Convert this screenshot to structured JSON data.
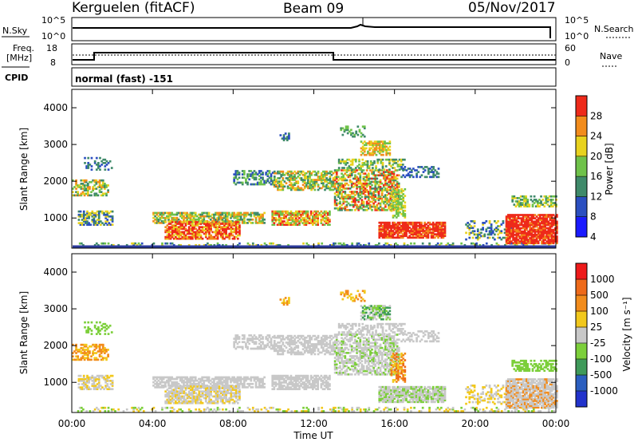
{
  "header": {
    "station": "Kerguelen (fitACF)",
    "beam": "Beam 09",
    "date": "05/Nov/2017"
  },
  "top_panels": {
    "nsky_label": "N.Sky",
    "nsky_ticks": [
      "10^5",
      "10^0"
    ],
    "nsearch_label": "N.Search",
    "nsearch_ticks": [
      "10^5",
      "10^0"
    ],
    "freq_label_1": "Freq.",
    "freq_label_2": "[MHz]",
    "freq_ticks": [
      "18",
      "8"
    ],
    "nave_label": "Nave",
    "nave_ticks": [
      "60",
      "0"
    ],
    "cpid_label": "CPID",
    "cpid_text": "normal (fast) -151"
  },
  "chart_data": [
    {
      "type": "heatmap",
      "name": "power",
      "ylabel": "Slant Range [km]",
      "yticks": [
        "4000",
        "3000",
        "2000",
        "1000"
      ],
      "ylim": [
        180,
        4500
      ],
      "colorbar_label": "Power [dB]",
      "colorbar_ticks": [
        "28",
        "24",
        "20",
        "16",
        "12",
        "8",
        "4"
      ],
      "colors": [
        "#1a1aff",
        "#2b4fc0",
        "#3f8a6a",
        "#6fc24a",
        "#e8d21e",
        "#f28c1c",
        "#ee2a1a"
      ]
    },
    {
      "type": "heatmap",
      "name": "velocity",
      "ylabel": "Slant Range [km]",
      "yticks": [
        "4000",
        "3000",
        "2000",
        "1000"
      ],
      "ylim": [
        180,
        4500
      ],
      "colorbar_label": "Velocity [m s⁻¹]",
      "colorbar_ticks": [
        "1000",
        "500",
        "100",
        "25",
        "-25",
        "-100",
        "-500",
        "-1000"
      ],
      "colors": [
        "#2233cc",
        "#2b5fc0",
        "#3f9a5a",
        "#7ccf3a",
        "#c8c8c8",
        "#f2c81c",
        "#f28c1c",
        "#ee6a1a",
        "#ee1a1a"
      ]
    }
  ],
  "x_axis": {
    "ticks": [
      "00:00",
      "04:00",
      "08:00",
      "12:00",
      "16:00",
      "20:00",
      "00:00"
    ],
    "label": "Time UT"
  }
}
